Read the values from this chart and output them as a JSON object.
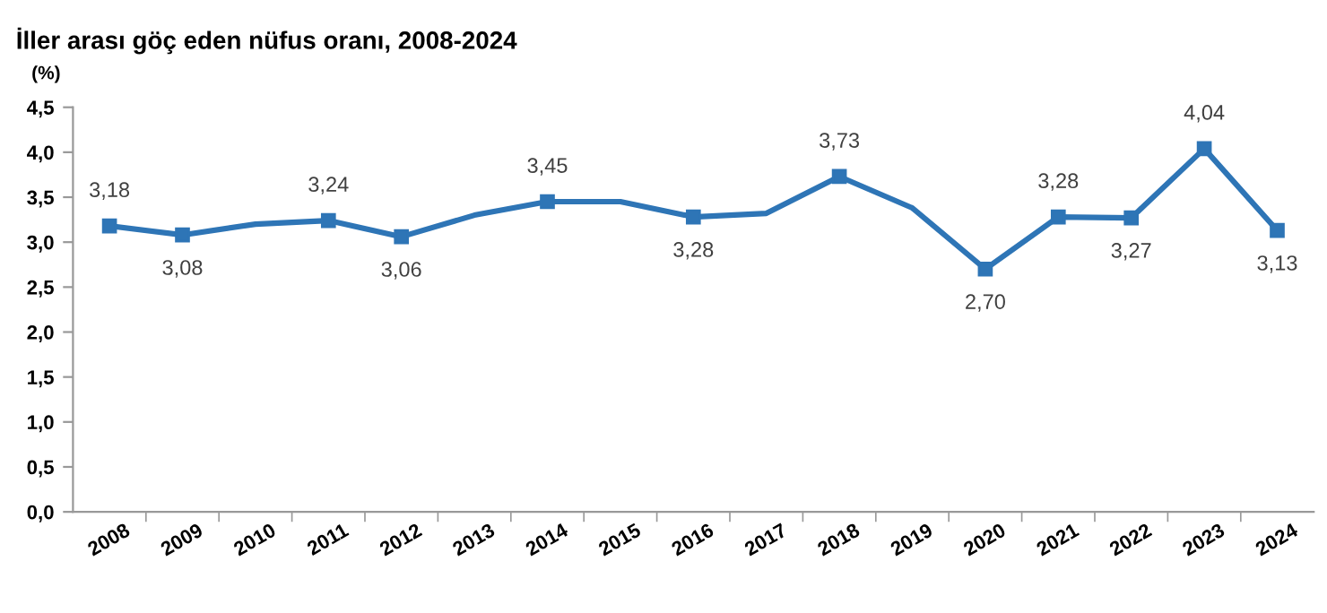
{
  "chart_data": {
    "type": "line",
    "title": "İller arası göç eden nüfus oranı, 2008-2024",
    "ylabel": "(%)",
    "categories": [
      "2008",
      "2009",
      "2010",
      "2011",
      "2012",
      "2013",
      "2014",
      "2015",
      "2016",
      "2017",
      "2018",
      "2019",
      "2020",
      "2021",
      "2022",
      "2023",
      "2024"
    ],
    "series": [
      {
        "color": "#2e75b6",
        "values": [
          3.18,
          3.08,
          3.2,
          3.24,
          3.06,
          3.3,
          3.45,
          3.45,
          3.28,
          3.32,
          3.73,
          3.38,
          2.7,
          3.28,
          3.27,
          4.04,
          3.13
        ],
        "value_labels": [
          "3,18",
          "3,08",
          null,
          "3,24",
          "3,06",
          null,
          "3,45",
          null,
          "3,28",
          null,
          "3,73",
          null,
          "2,70",
          "3,28",
          "3,27",
          "4,04",
          "3,13"
        ]
      }
    ],
    "ylim": [
      0,
      4.5
    ],
    "yticks": [
      {
        "value": 0,
        "label": "0,0"
      },
      {
        "value": 0.5,
        "label": "0,5"
      },
      {
        "value": 1,
        "label": "1,0"
      },
      {
        "value": 1.5,
        "label": "1,5"
      },
      {
        "value": 2,
        "label": "2,0"
      },
      {
        "value": 2.5,
        "label": "2,5"
      },
      {
        "value": 3,
        "label": "3,0"
      },
      {
        "value": 3.5,
        "label": "3,5"
      },
      {
        "value": 4,
        "label": "4,0"
      },
      {
        "value": 4.5,
        "label": "4,5"
      }
    ],
    "grid": false,
    "legend": false,
    "marker": "square",
    "line_style": "solid"
  }
}
